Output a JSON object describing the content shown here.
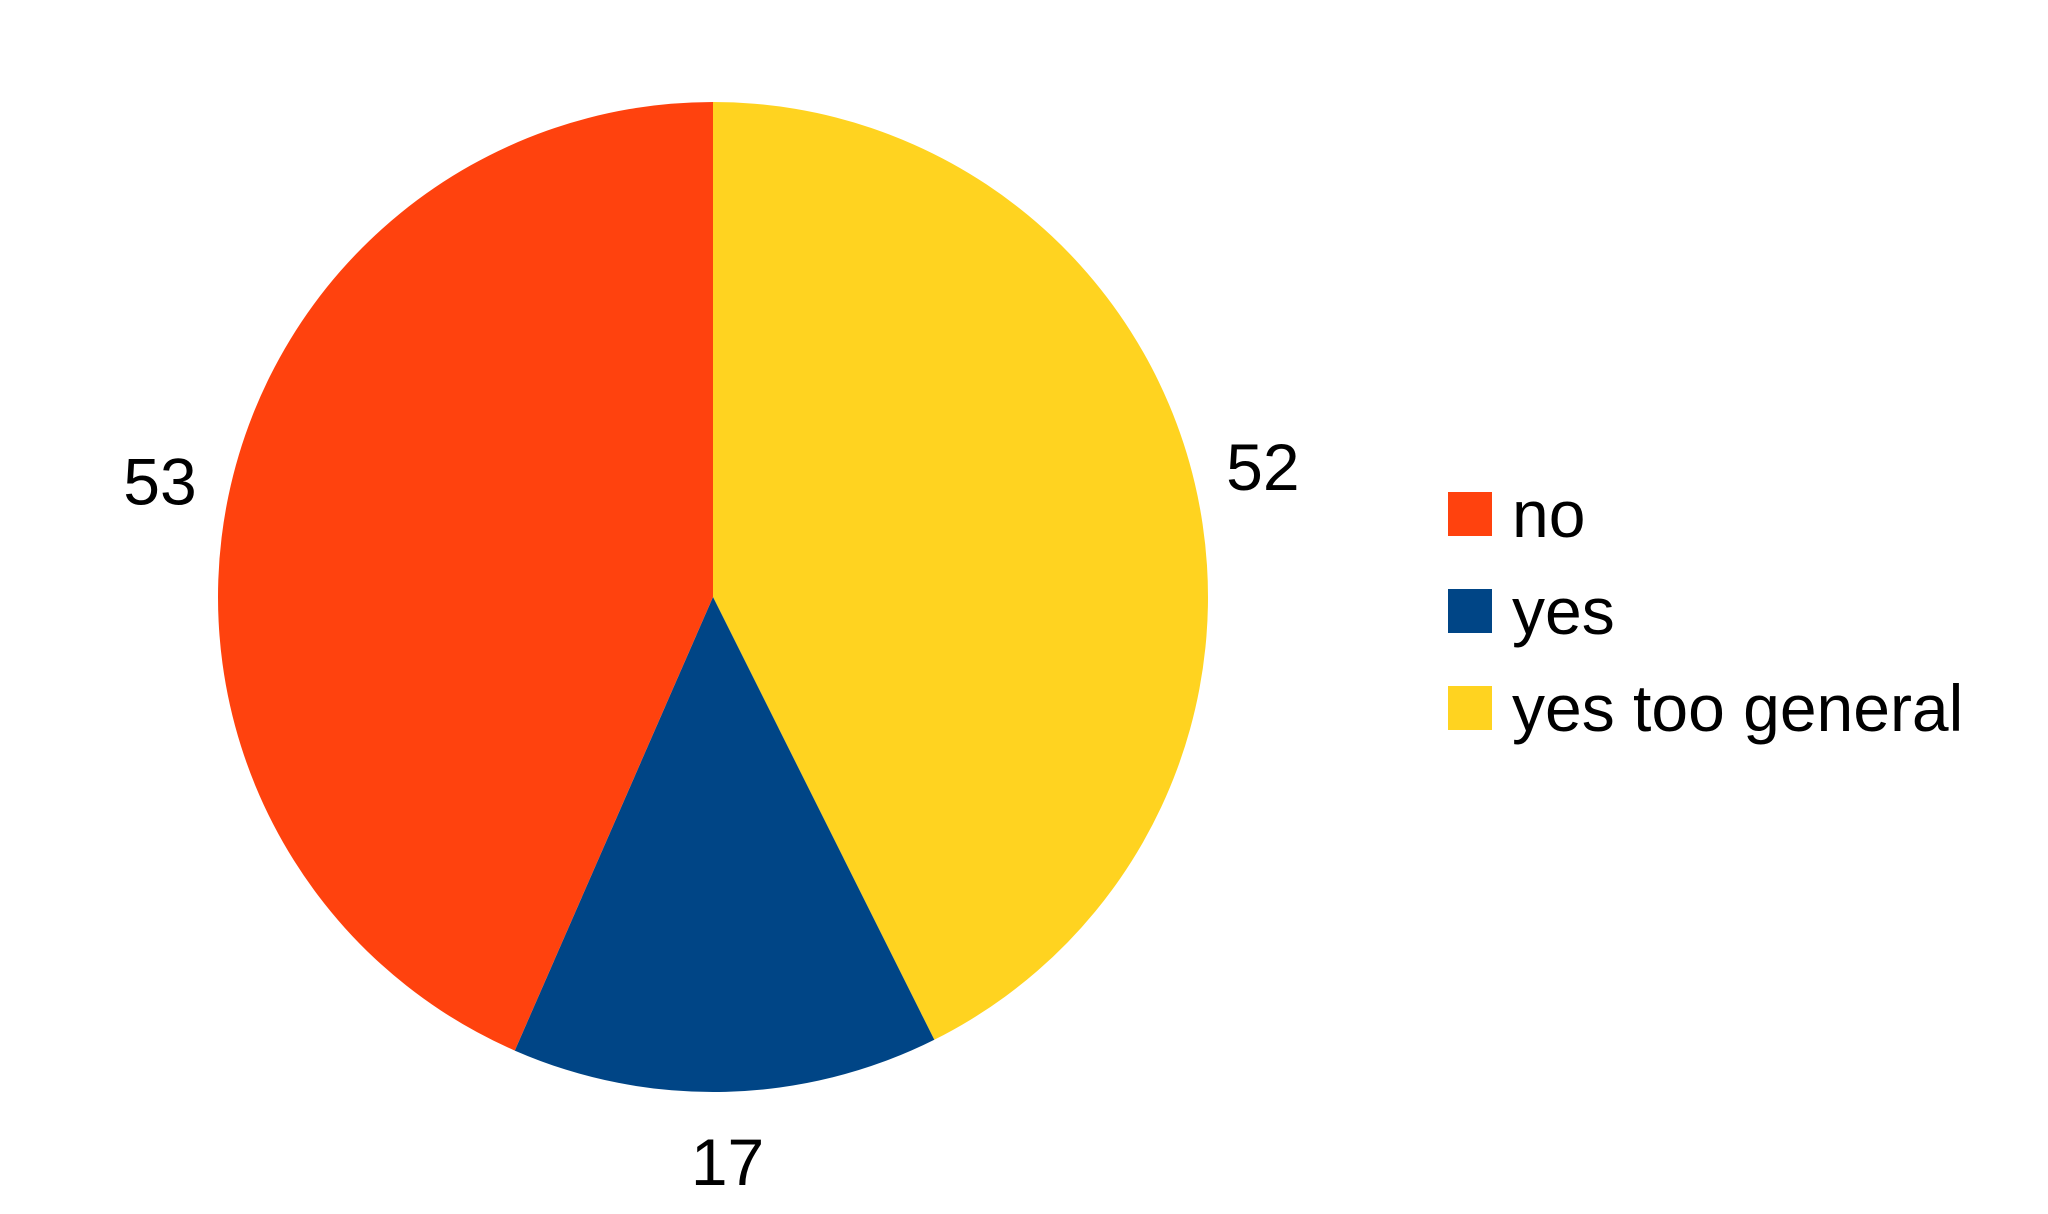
{
  "chart_data": {
    "type": "pie",
    "title": "",
    "slices": [
      {
        "label": "yes too general",
        "value": 52,
        "color": "#FFD320"
      },
      {
        "label": "yes",
        "value": 17,
        "color": "#004586"
      },
      {
        "label": "no",
        "value": 53,
        "color": "#FF420E"
      }
    ],
    "legend": {
      "placement": "right",
      "entries": [
        {
          "label": "no",
          "color": "#FF420E"
        },
        {
          "label": "yes",
          "color": "#004586"
        },
        {
          "label": "yes too general",
          "color": "#FFD320"
        }
      ]
    }
  }
}
